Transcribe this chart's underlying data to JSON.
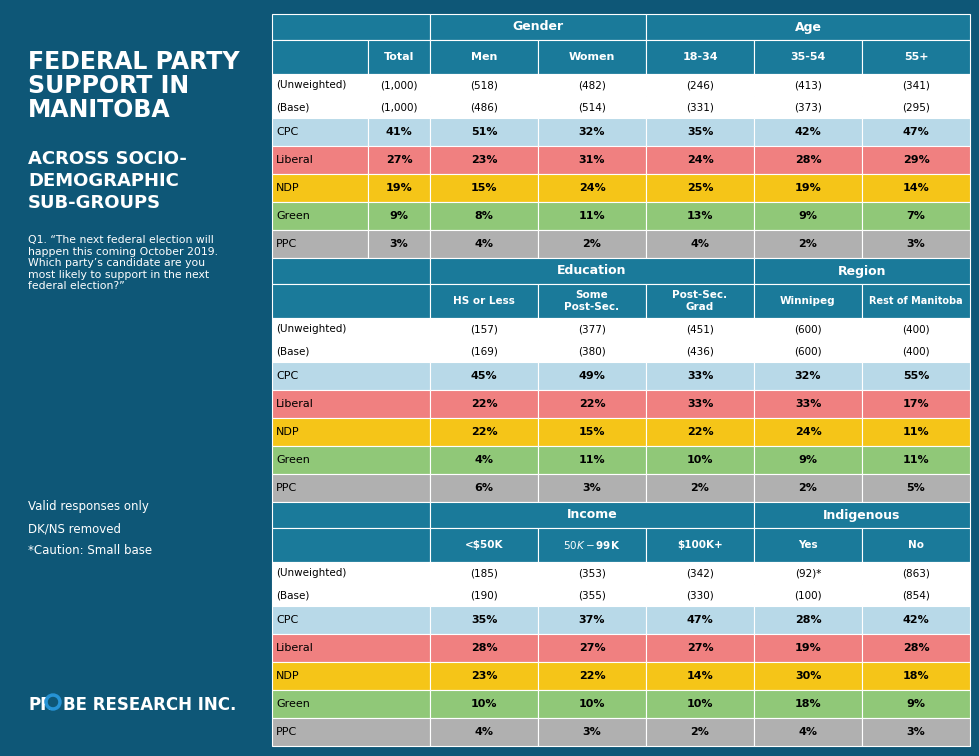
{
  "left_bg": "#0e5777",
  "header_bg": "#1a7a9a",
  "header_text": "#ffffff",
  "cpc_color": "#b8d9e8",
  "liberal_color": "#f08080",
  "ndp_color": "#f5c518",
  "green_color": "#90c878",
  "ppc_color": "#b0b0b0",
  "white": "#ffffff",
  "light_gray": "#f0f0f0",
  "block1": {
    "uw": [
      "(1,000)",
      "(518)",
      "(482)",
      "(246)",
      "(413)",
      "(341)"
    ],
    "base": [
      "(1,000)",
      "(486)",
      "(514)",
      "(331)",
      "(373)",
      "(295)"
    ],
    "rows": [
      {
        "party": "CPC",
        "vals": [
          "41%",
          "51%",
          "32%",
          "35%",
          "42%",
          "47%"
        ]
      },
      {
        "party": "Liberal",
        "vals": [
          "27%",
          "23%",
          "31%",
          "24%",
          "28%",
          "29%"
        ]
      },
      {
        "party": "NDP",
        "vals": [
          "19%",
          "15%",
          "24%",
          "25%",
          "19%",
          "14%"
        ]
      },
      {
        "party": "Green",
        "vals": [
          "9%",
          "8%",
          "11%",
          "13%",
          "9%",
          "7%"
        ]
      },
      {
        "party": "PPC",
        "vals": [
          "3%",
          "4%",
          "2%",
          "4%",
          "2%",
          "3%"
        ]
      }
    ]
  },
  "block2": {
    "uw": [
      "(157)",
      "(377)",
      "(451)",
      "(600)",
      "(400)"
    ],
    "base": [
      "(169)",
      "(380)",
      "(436)",
      "(600)",
      "(400)"
    ],
    "rows": [
      {
        "party": "CPC",
        "vals": [
          "45%",
          "49%",
          "33%",
          "32%",
          "55%"
        ]
      },
      {
        "party": "Liberal",
        "vals": [
          "22%",
          "22%",
          "33%",
          "33%",
          "17%"
        ]
      },
      {
        "party": "NDP",
        "vals": [
          "22%",
          "15%",
          "22%",
          "24%",
          "11%"
        ]
      },
      {
        "party": "Green",
        "vals": [
          "4%",
          "11%",
          "10%",
          "9%",
          "11%"
        ]
      },
      {
        "party": "PPC",
        "vals": [
          "6%",
          "3%",
          "2%",
          "2%",
          "5%"
        ]
      }
    ]
  },
  "block3": {
    "uw": [
      "(185)",
      "(353)",
      "(342)",
      "(92)*",
      "(863)"
    ],
    "base": [
      "(190)",
      "(355)",
      "(330)",
      "(100)",
      "(854)"
    ],
    "rows": [
      {
        "party": "CPC",
        "vals": [
          "35%",
          "37%",
          "47%",
          "28%",
          "42%"
        ]
      },
      {
        "party": "Liberal",
        "vals": [
          "28%",
          "27%",
          "27%",
          "19%",
          "28%"
        ]
      },
      {
        "party": "NDP",
        "vals": [
          "23%",
          "22%",
          "14%",
          "30%",
          "18%"
        ]
      },
      {
        "party": "Green",
        "vals": [
          "10%",
          "10%",
          "10%",
          "18%",
          "9%"
        ]
      },
      {
        "party": "PPC",
        "vals": [
          "4%",
          "3%",
          "2%",
          "4%",
          "3%"
        ]
      }
    ]
  }
}
